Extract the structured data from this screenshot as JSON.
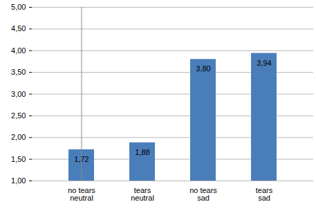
{
  "chart_data": {
    "type": "bar",
    "categories": [
      [
        "no tears",
        "neutral"
      ],
      [
        "tears",
        "neutral"
      ],
      [
        "no tears",
        "sad"
      ],
      [
        "tears",
        "sad"
      ]
    ],
    "values": [
      1.72,
      1.88,
      3.8,
      3.94
    ],
    "value_labels": [
      "1,72",
      "1,88",
      "3,80",
      "3,94"
    ],
    "data_labels": true,
    "color": "#4a7ebb",
    "ylim": [
      1,
      5
    ],
    "yticks": [
      {
        "value": 1,
        "label": "1,00"
      },
      {
        "value": 1.5,
        "label": "1,50"
      },
      {
        "value": 2,
        "label": "2,00"
      },
      {
        "value": 2.5,
        "label": "2,50"
      },
      {
        "value": 3,
        "label": "3,00"
      },
      {
        "value": 3.5,
        "label": "3,50"
      },
      {
        "value": 4,
        "label": "4,00"
      },
      {
        "value": 4.5,
        "label": "4,50"
      },
      {
        "value": 5,
        "label": "5,00"
      }
    ],
    "grid": true
  }
}
